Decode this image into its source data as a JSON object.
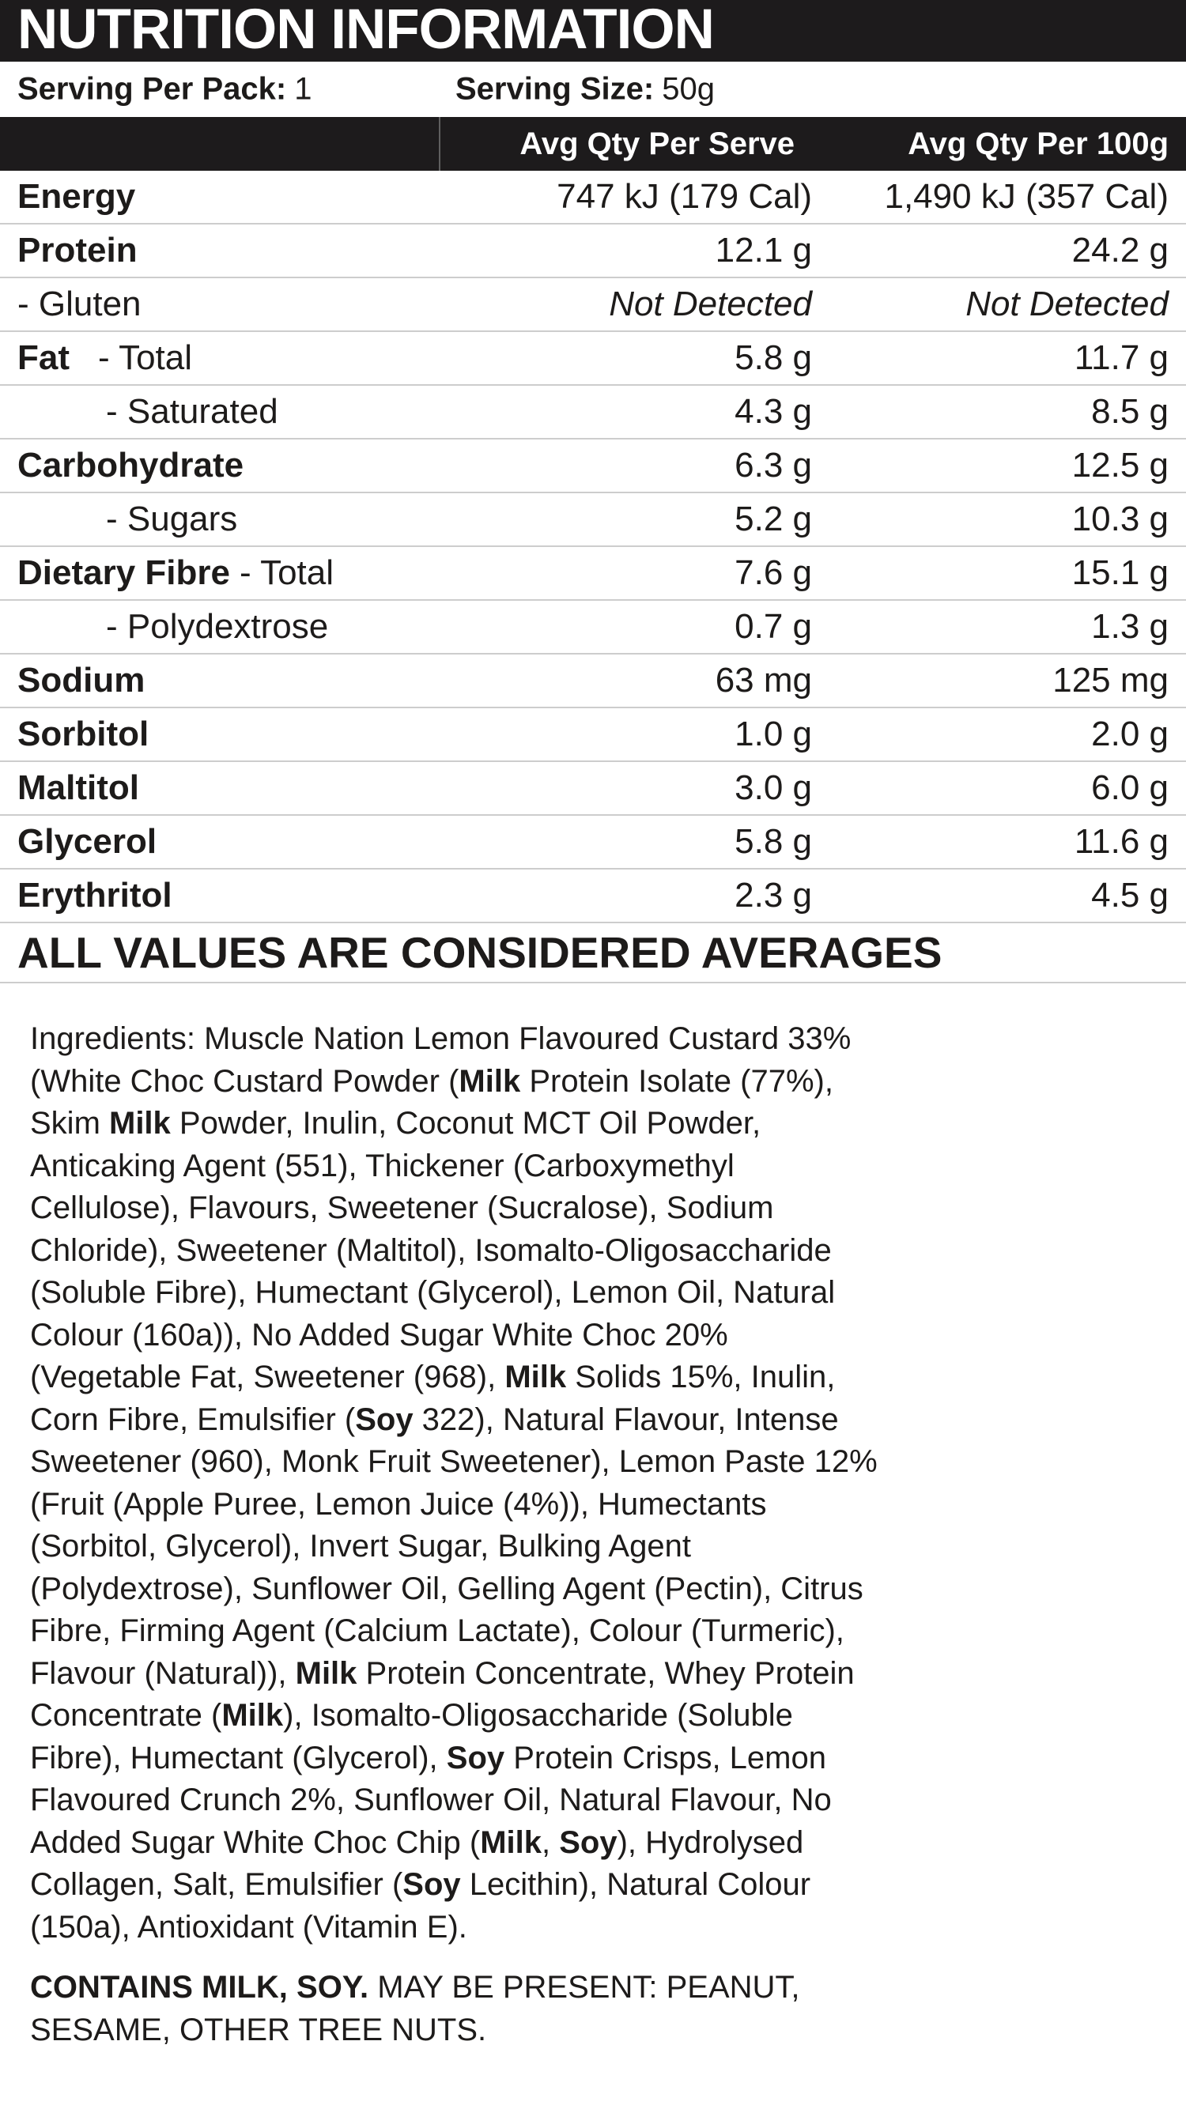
{
  "header": {
    "title": "NUTRITION INFORMATION"
  },
  "serving": {
    "per_pack_label": "Serving Per Pack:",
    "per_pack_value": "1",
    "size_label": "Serving Size:",
    "size_value": "50g"
  },
  "columns": {
    "serve": "Avg Qty Per Serve",
    "per100g": "Avg Qty Per 100g"
  },
  "table": {
    "rows": [
      {
        "bold": "Energy",
        "reg": "",
        "serve": "747 kJ (179 Cal)",
        "per100": "1,490 kJ (357 Cal)"
      },
      {
        "bold": "Protein",
        "reg": "",
        "serve": "12.1 g",
        "per100": "24.2 g"
      },
      {
        "bold": "",
        "reg": "- Gluten",
        "serve": "Not Detected",
        "per100": "Not Detected"
      },
      {
        "bold": "Fat",
        "reg": "- Total",
        "serve": "5.8 g",
        "per100": "11.7 g"
      },
      {
        "bold": "",
        "reg": "- Saturated",
        "serve": "4.3 g",
        "per100": "8.5 g"
      },
      {
        "bold": "Carbohydrate",
        "reg": "",
        "serve": "6.3 g",
        "per100": "12.5 g"
      },
      {
        "bold": "",
        "reg": "- Sugars",
        "serve": "5.2 g",
        "per100": "10.3 g"
      },
      {
        "bold": "Dietary Fibre",
        "reg": "- Total",
        "serve": "7.6 g",
        "per100": "15.1 g"
      },
      {
        "bold": "",
        "reg": "- Polydextrose",
        "serve": "0.7 g",
        "per100": "1.3 g"
      },
      {
        "bold": "Sodium",
        "reg": "",
        "serve": "63 mg",
        "per100": "125 mg"
      },
      {
        "bold": "Sorbitol",
        "reg": "",
        "serve": "1.0 g",
        "per100": "2.0 g"
      },
      {
        "bold": "Maltitol",
        "reg": "",
        "serve": "3.0 g",
        "per100": "6.0 g"
      },
      {
        "bold": "Glycerol",
        "reg": "",
        "serve": "5.8 g",
        "per100": "11.6 g"
      },
      {
        "bold": "Erythritol",
        "reg": "",
        "serve": "2.3 g",
        "per100": "4.5 g"
      }
    ]
  },
  "footer_note": "ALL VALUES ARE CONSIDERED AVERAGES",
  "ingredients": {
    "lines": [
      [
        {
          "t": "Ingredients: Muscle Nation Lemon Flavoured Custard 33%"
        }
      ],
      [
        {
          "t": "(White Choc Custard Powder ("
        },
        {
          "t": "Milk",
          "b": true
        },
        {
          "t": " Protein Isolate (77%),"
        }
      ],
      [
        {
          "t": "Skim "
        },
        {
          "t": "Milk",
          "b": true
        },
        {
          "t": " Powder, Inulin, Coconut MCT Oil Powder,"
        }
      ],
      [
        {
          "t": "Anticaking Agent (551), Thickener (Carboxymethyl"
        }
      ],
      [
        {
          "t": "Cellulose), Flavours, Sweetener (Sucralose), Sodium"
        }
      ],
      [
        {
          "t": "Chloride), Sweetener (Maltitol), Isomalto-Oligosaccharide"
        }
      ],
      [
        {
          "t": "(Soluble Fibre), Humectant (Glycerol), Lemon Oil, Natural"
        }
      ],
      [
        {
          "t": "Colour (160a)), No Added Sugar White Choc 20%"
        }
      ],
      [
        {
          "t": "(Vegetable Fat, Sweetener (968), "
        },
        {
          "t": "Milk",
          "b": true
        },
        {
          "t": " Solids 15%, Inulin,"
        }
      ],
      [
        {
          "t": "Corn Fibre, Emulsifier ("
        },
        {
          "t": "Soy",
          "b": true
        },
        {
          "t": " 322), Natural Flavour, Intense"
        }
      ],
      [
        {
          "t": "Sweetener (960), Monk Fruit Sweetener), Lemon Paste 12%"
        }
      ],
      [
        {
          "t": "(Fruit (Apple Puree, Lemon Juice (4%)), Humectants"
        }
      ],
      [
        {
          "t": "(Sorbitol, Glycerol), Invert Sugar, Bulking Agent"
        }
      ],
      [
        {
          "t": "(Polydextrose), Sunflower Oil, Gelling Agent (Pectin), Citrus"
        }
      ],
      [
        {
          "t": "Fibre, Firming Agent (Calcium Lactate), Colour (Turmeric),"
        }
      ],
      [
        {
          "t": "Flavour (Natural)), "
        },
        {
          "t": "Milk",
          "b": true
        },
        {
          "t": " Protein Concentrate, Whey Protein"
        }
      ],
      [
        {
          "t": "Concentrate ("
        },
        {
          "t": "Milk",
          "b": true
        },
        {
          "t": "), Isomalto-Oligosaccharide (Soluble"
        }
      ],
      [
        {
          "t": "Fibre), Humectant (Glycerol), "
        },
        {
          "t": "Soy",
          "b": true
        },
        {
          "t": " Protein Crisps, Lemon"
        }
      ],
      [
        {
          "t": "Flavoured Crunch 2%, Sunflower Oil, Natural Flavour, No"
        }
      ],
      [
        {
          "t": "Added Sugar White Choc Chip ("
        },
        {
          "t": "Milk",
          "b": true
        },
        {
          "t": ", "
        },
        {
          "t": "Soy",
          "b": true
        },
        {
          "t": "), Hydrolysed"
        }
      ],
      [
        {
          "t": "Collagen, Salt, Emulsifier ("
        },
        {
          "t": "Soy",
          "b": true
        },
        {
          "t": " Lecithin), Natural Colour"
        }
      ],
      [
        {
          "t": "(150a), Antioxidant (Vitamin E)."
        }
      ]
    ]
  },
  "allergen": {
    "lines": [
      [
        {
          "t": "CONTAINS MILK, SOY.",
          "b": true
        },
        {
          "t": " MAY BE PRESENT: PEANUT,"
        }
      ],
      [
        {
          "t": "SESAME, OTHER TREE NUTS."
        }
      ]
    ]
  },
  "colors": {
    "bar_black": "#1d1b1c",
    "text_black": "#1d1b1a",
    "row_divider_gray": "#cdcdcd",
    "header_divider_gray": "#5f5f5f",
    "header_text_white": "#ffffff"
  }
}
